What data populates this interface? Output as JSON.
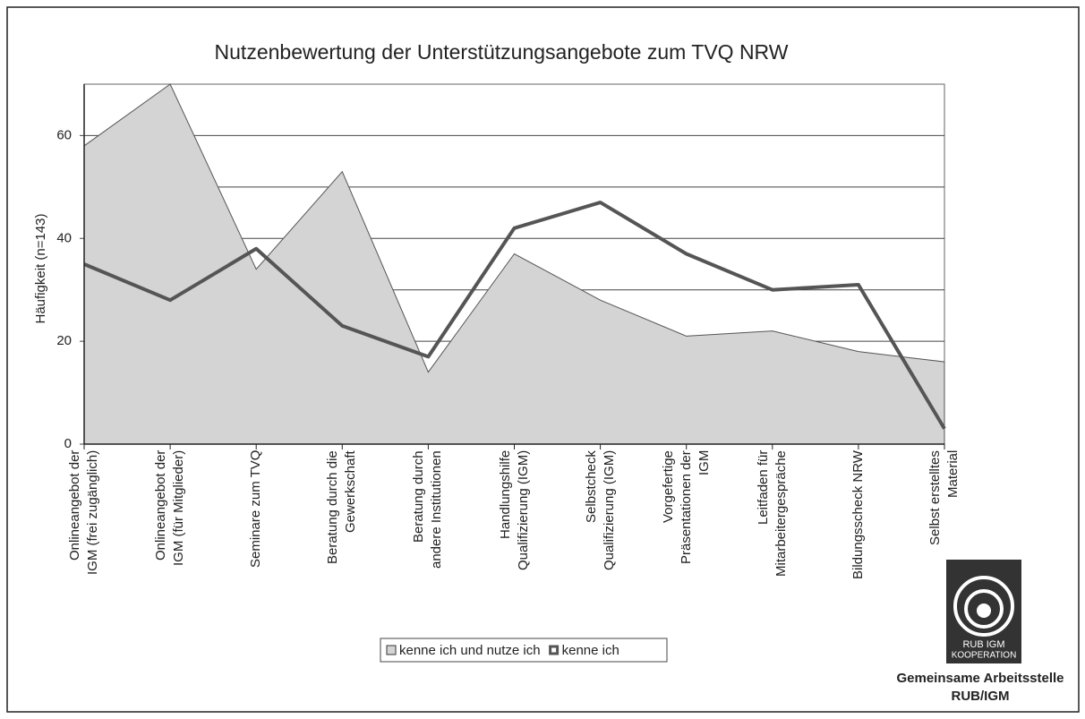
{
  "chart_data": {
    "type": "area_line",
    "title": "Nutzenbewertung der Unterstützungsangebote zum TVQ NRW",
    "y_label": "Häufigkeit (n=143)",
    "categories": [
      "Onlineangebot der\nIGM (frei zugänglich)",
      "Onlineangebot der\nIGM (für Mitglieder)",
      "Seminare zum TVQ",
      "Beratung durch die\nGewerkschaft",
      "Beratung durch\nandere Institutionen",
      "Handlungshilfe\nQualifizierung (IGM)",
      "Selbstcheck\nQualifizierung (IGM)",
      "Vorgefertige\nPräsentationen der\nIGM",
      "Leitfaden für\nMitarbeitergespräche",
      "Bildungsscheck NRW",
      "Selbst erstelltes\nMaterial"
    ],
    "series": [
      {
        "name": "kenne ich und nutze ich",
        "type": "area",
        "color": "#d4d4d4",
        "values": [
          58,
          70,
          34,
          53,
          14,
          37,
          28,
          21,
          22,
          18,
          16
        ]
      },
      {
        "name": "kenne ich",
        "type": "line",
        "color": "#555555",
        "values": [
          35,
          28,
          38,
          23,
          17,
          42,
          47,
          37,
          30,
          31,
          3
        ]
      }
    ],
    "ylim": [
      0,
      70
    ],
    "yticks": [
      0,
      20,
      40,
      60
    ],
    "minor_grid": [
      10,
      30,
      50
    ],
    "grid": true,
    "legend": "bottom"
  },
  "logo": {
    "top": "RUB  IGM",
    "bottom": "KOOPERATION",
    "caption": [
      "Gemeinsame Arbeitsstelle",
      "RUB/IGM"
    ]
  }
}
